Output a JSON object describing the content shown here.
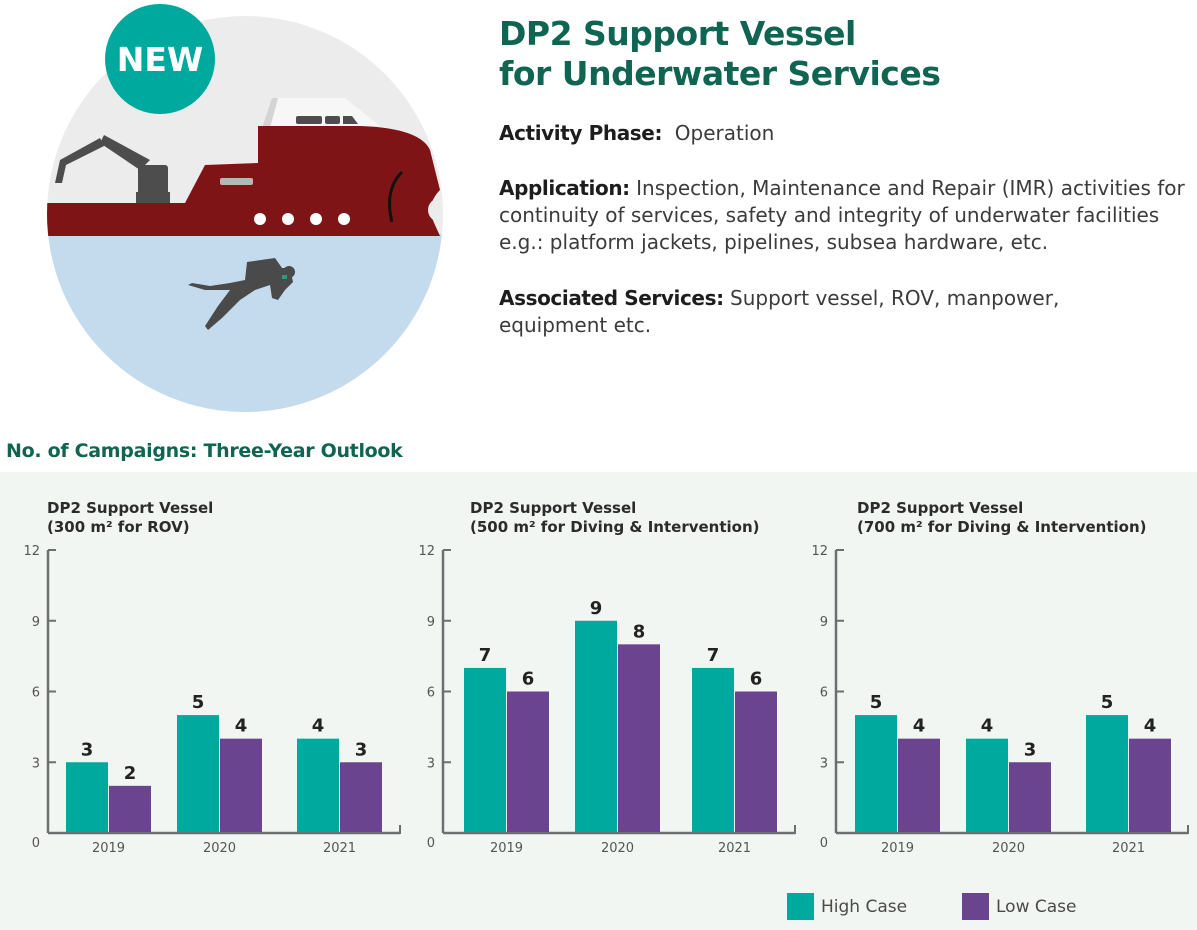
{
  "badge": {
    "label": "NEW"
  },
  "header": {
    "title_line1": "DP2 Support Vessel",
    "title_line2": "for Underwater Services"
  },
  "info": {
    "phase_label": "Activity Phase:",
    "phase_value": "Operation",
    "application_label": "Application:",
    "application_value": "Inspection, Maintenance and Repair (IMR) activities for continuity of services, safety and integrity of underwater facilities e.g.: platform jackets, pipelines, subsea hardware, etc.",
    "associated_label": "Associated Services:",
    "associated_value": "Support vessel, ROV, manpower, equipment etc."
  },
  "section_title": "No. of Campaigns: Three-Year Outlook",
  "colors": {
    "title_green": "#0f6552",
    "high_case": "#00a99d",
    "low_case": "#6b448f",
    "axis": "#6d6e70",
    "panel_bg": "#f1f6f2",
    "hull": "#7f1416",
    "water": "#c3dbed",
    "sky": "#ececec"
  },
  "legend": [
    {
      "name": "High Case",
      "color": "#00a99d"
    },
    {
      "name": "Low Case",
      "color": "#6b448f"
    }
  ],
  "chart_data": [
    {
      "type": "bar",
      "title_line1": "DP2 Support Vessel",
      "title_line2": "(300 m² for ROV)",
      "categories": [
        "2019",
        "2020",
        "2021"
      ],
      "series": [
        {
          "name": "High Case",
          "values": [
            3,
            5,
            4
          ]
        },
        {
          "name": "Low Case",
          "values": [
            2,
            4,
            3
          ]
        }
      ],
      "yticks": [
        0,
        3,
        6,
        9,
        12
      ],
      "ylim": [
        0,
        12
      ],
      "xlabel": "",
      "ylabel": "",
      "grid": false,
      "legend": "bottom-right"
    },
    {
      "type": "bar",
      "title_line1": "DP2 Support Vessel",
      "title_line2": "(500 m² for Diving & Intervention)",
      "categories": [
        "2019",
        "2020",
        "2021"
      ],
      "series": [
        {
          "name": "High Case",
          "values": [
            7,
            9,
            7
          ]
        },
        {
          "name": "Low Case",
          "values": [
            6,
            8,
            6
          ]
        }
      ],
      "yticks": [
        0,
        3,
        6,
        9,
        12
      ],
      "ylim": [
        0,
        12
      ],
      "xlabel": "",
      "ylabel": "",
      "grid": false,
      "legend": "bottom-right"
    },
    {
      "type": "bar",
      "title_line1": "DP2 Support Vessel",
      "title_line2": "(700 m² for Diving & Intervention)",
      "categories": [
        "2019",
        "2020",
        "2021"
      ],
      "series": [
        {
          "name": "High Case",
          "values": [
            5,
            4,
            5
          ]
        },
        {
          "name": "Low Case",
          "values": [
            4,
            3,
            4
          ]
        }
      ],
      "yticks": [
        0,
        3,
        6,
        9,
        12
      ],
      "ylim": [
        0,
        12
      ],
      "xlabel": "",
      "ylabel": "",
      "grid": false,
      "legend": "bottom-right"
    }
  ]
}
